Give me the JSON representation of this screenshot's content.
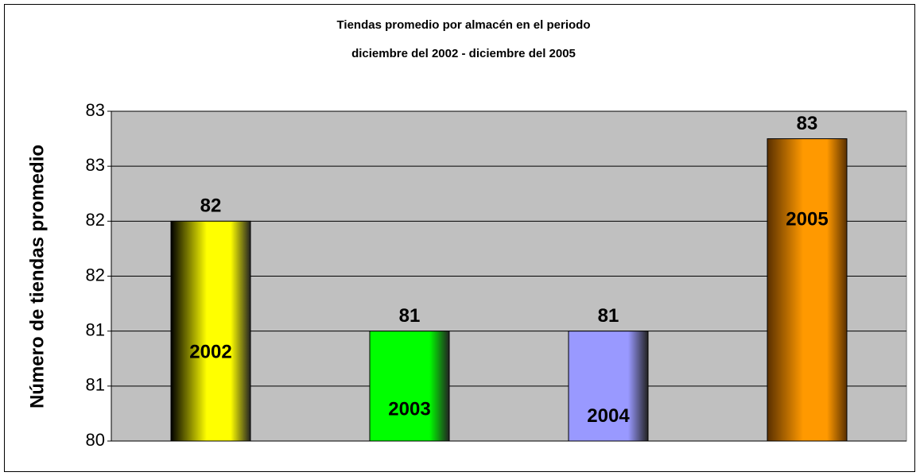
{
  "chart_data": {
    "type": "bar",
    "title": [
      "Tiendas promedio por almacén en el periodo",
      "diciembre del 2002  -  diciembre del 2005"
    ],
    "y_label": "Número de tiendas promedio",
    "categories": [
      "2002",
      "2003",
      "2004",
      "2005"
    ],
    "values": [
      82,
      81,
      81,
      82.75
    ],
    "value_labels": [
      "82",
      "81",
      "81",
      "83"
    ],
    "colors": [
      "#ffff00",
      "#00ff00",
      "#9999ff",
      "#ff9900"
    ],
    "ylim": [
      80,
      83
    ],
    "yticks": [
      80,
      {
        "value": 80.5,
        "label": "81"
      },
      81,
      {
        "value": 81.5,
        "label": "82"
      },
      82,
      {
        "value": 82.5,
        "label": "83"
      },
      83
    ],
    "grid": true
  }
}
